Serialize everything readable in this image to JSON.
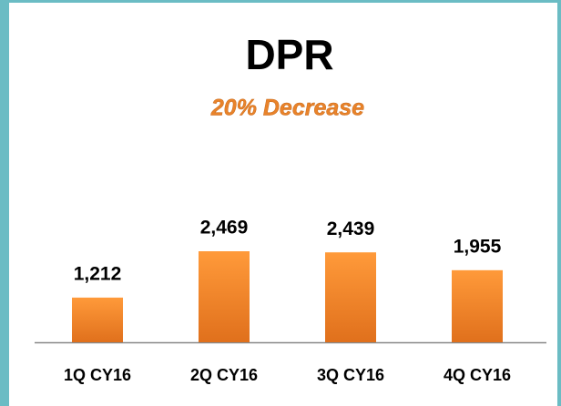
{
  "chart_data": {
    "type": "bar",
    "title": "DPR",
    "subtitle": "20% Decrease",
    "categories": [
      "1Q CY16",
      "2Q CY16",
      "3Q CY16",
      "4Q CY16"
    ],
    "values": [
      1212,
      2469,
      2439,
      1955
    ],
    "value_labels": [
      "1,212",
      "2,469",
      "2,439",
      "1,955"
    ],
    "color": "#f28a2a"
  }
}
